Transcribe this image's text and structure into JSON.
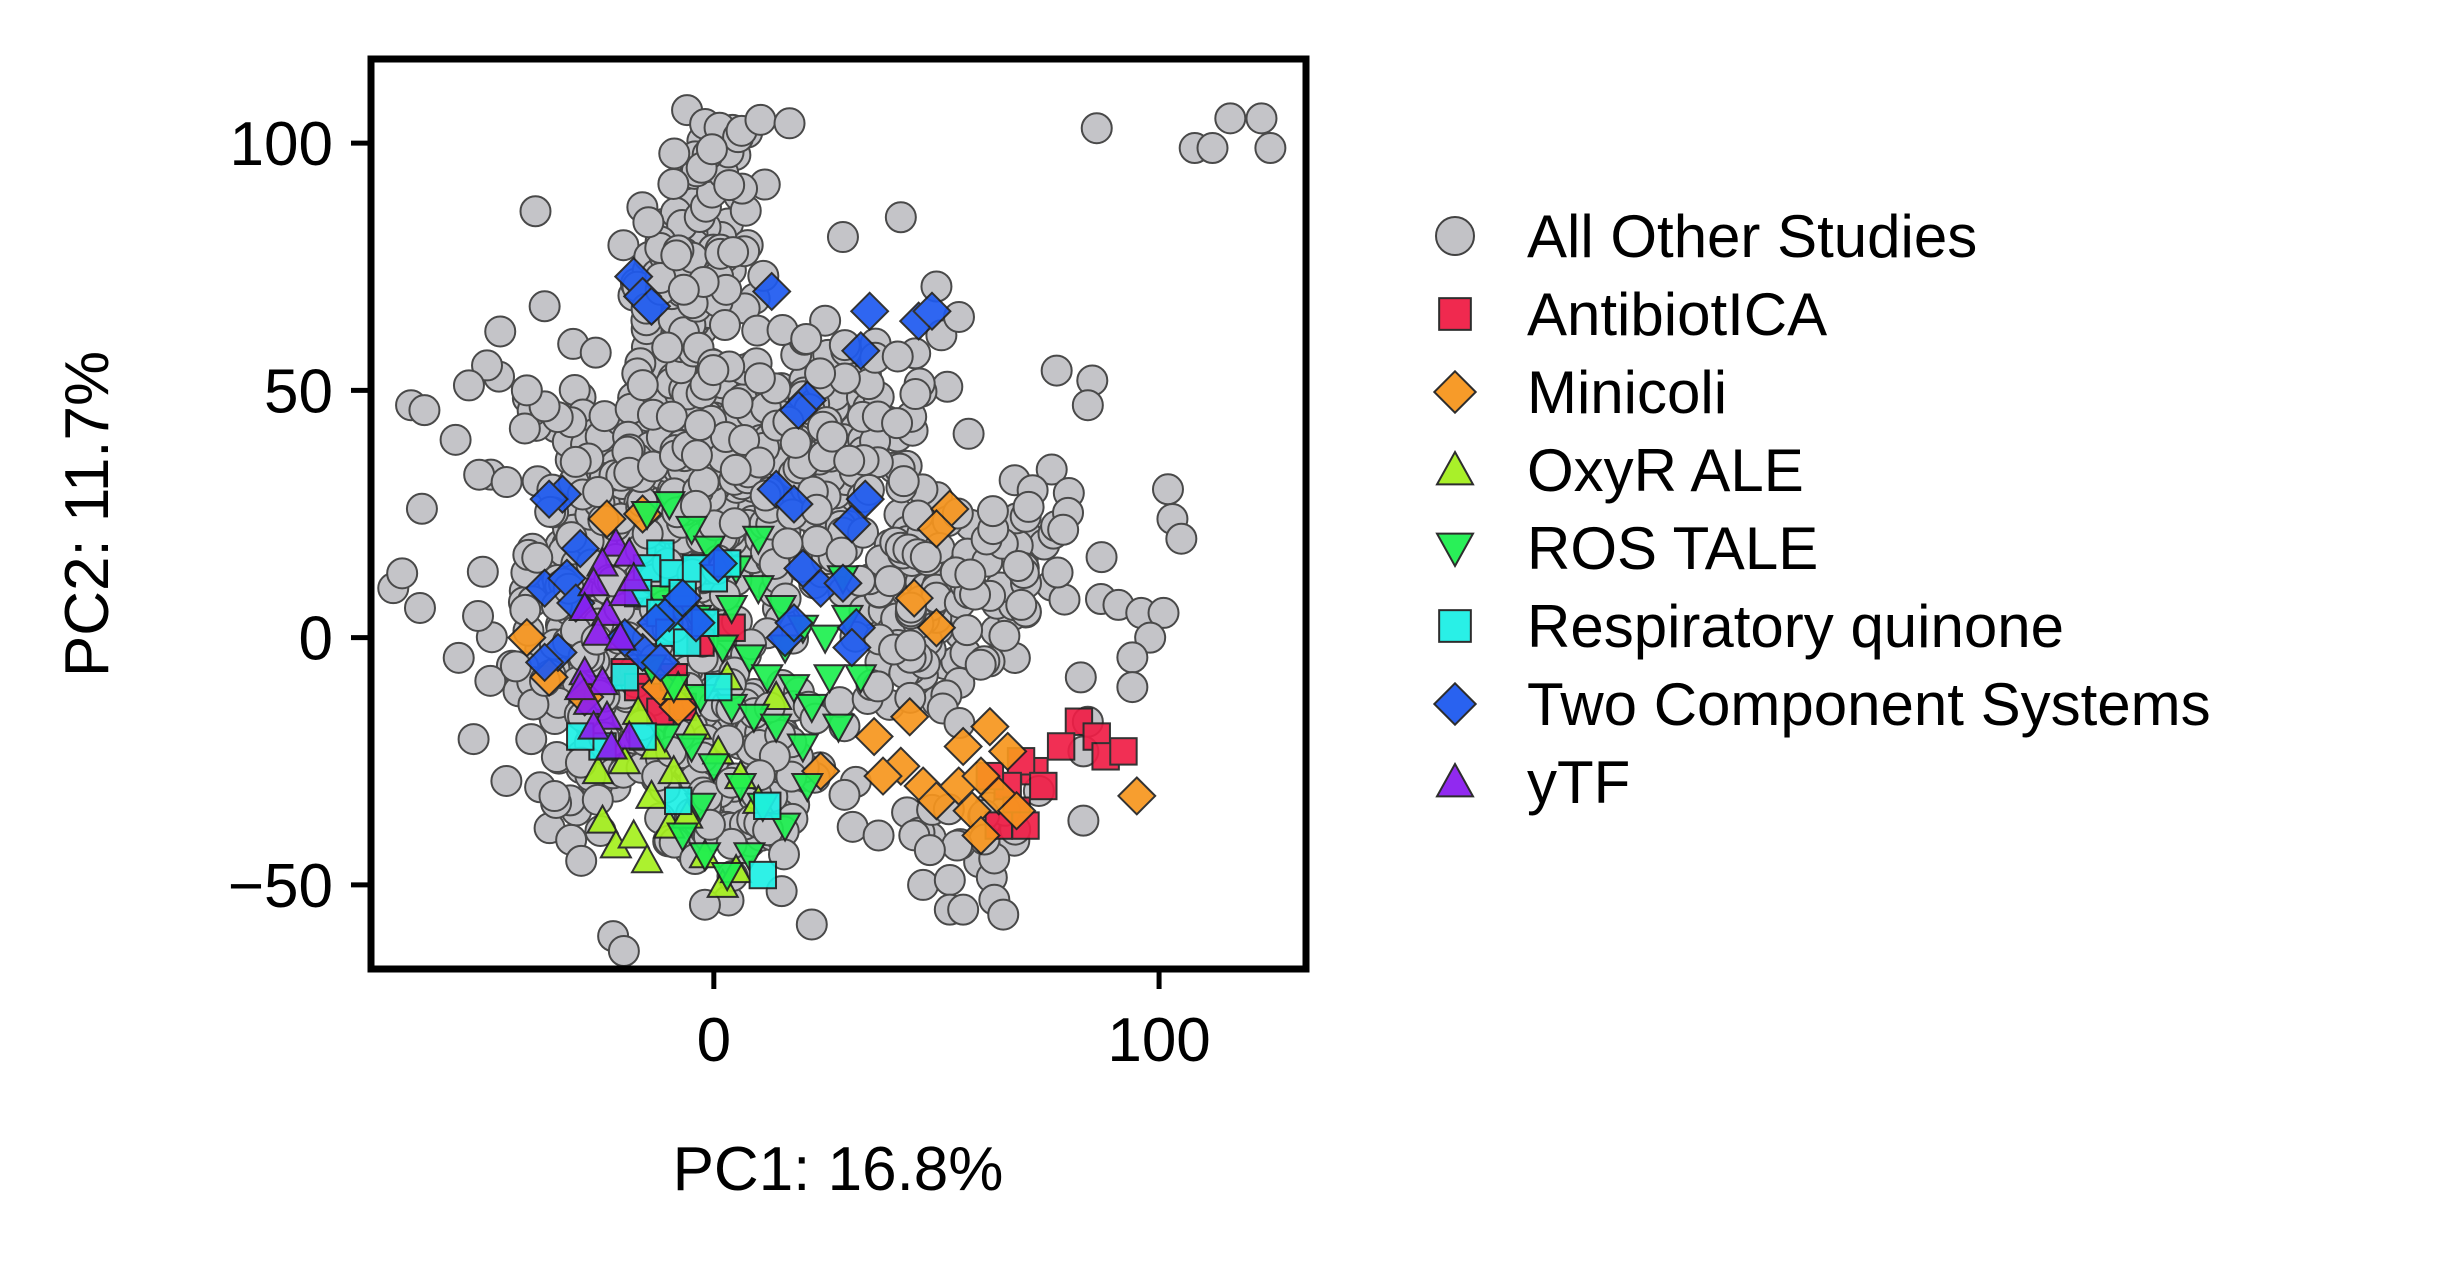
{
  "chart_data": {
    "type": "scatter",
    "title": "",
    "xlabel": "PC1: 16.8%",
    "ylabel": "PC2: 11.7%",
    "xlim": [
      -77,
      133
    ],
    "ylim": [
      -67,
      117
    ],
    "xticks": [
      0,
      100
    ],
    "xtick_labels": [
      "0",
      "100"
    ],
    "yticks": [
      -50,
      0,
      50,
      100
    ],
    "ytick_labels": [
      "−50",
      "0",
      "50",
      "100"
    ],
    "grid": false,
    "legend_position": "right, outside plot",
    "series": [
      {
        "name": "All Other Studies",
        "marker": "circle",
        "color": "#b8b8bd",
        "clusters": [
          {
            "cx": -18,
            "cy": 5,
            "rx": 26,
            "ry": 42,
            "n": 520
          },
          {
            "cx": 0,
            "cy": 35,
            "rx": 22,
            "ry": 18,
            "n": 210
          },
          {
            "cx": -6,
            "cy": 72,
            "rx": 14,
            "ry": 14,
            "n": 90
          },
          {
            "cx": -2,
            "cy": 96,
            "rx": 9,
            "ry": 8,
            "n": 35
          },
          {
            "cx": 22,
            "cy": 40,
            "rx": 24,
            "ry": 22,
            "n": 180
          },
          {
            "cx": 10,
            "cy": -25,
            "rx": 14,
            "ry": 18,
            "n": 110
          },
          {
            "cx": 45,
            "cy": 8,
            "rx": 16,
            "ry": 24,
            "n": 110
          },
          {
            "cx": 68,
            "cy": 14,
            "rx": 14,
            "ry": 20,
            "n": 55
          },
          {
            "cx": 58,
            "cy": -40,
            "rx": 10,
            "ry": 10,
            "n": 20
          }
        ],
        "points": [
          [
            17,
            104
          ],
          [
            86,
            103
          ],
          [
            108,
            99
          ],
          [
            112,
            99
          ],
          [
            116,
            105
          ],
          [
            123,
            105
          ],
          [
            125,
            99
          ],
          [
            -68,
            47
          ],
          [
            -65,
            46
          ],
          [
            -58,
            40
          ],
          [
            -55,
            51
          ],
          [
            -42,
            50
          ],
          [
            -72,
            10
          ],
          [
            -70,
            13
          ],
          [
            -66,
            6
          ],
          [
            -38,
            67
          ],
          [
            50,
            71
          ],
          [
            42,
            85
          ],
          [
            29,
            81
          ],
          [
            77,
            54
          ],
          [
            85,
            52
          ],
          [
            84,
            47
          ],
          [
            102,
            30
          ],
          [
            103,
            24
          ],
          [
            105,
            20
          ],
          [
            96,
            5
          ],
          [
            101,
            5
          ],
          [
            98,
            0
          ],
          [
            94,
            -4
          ],
          [
            94,
            -10
          ],
          [
            84,
            -17
          ],
          [
            83,
            -23
          ],
          [
            73,
            -31
          ],
          [
            83,
            -37
          ],
          [
            47,
            -50
          ],
          [
            53,
            -49
          ],
          [
            53,
            -55
          ],
          [
            56,
            -55
          ],
          [
            63,
            -53
          ],
          [
            65,
            -56
          ],
          [
            37,
            -40
          ],
          [
            22,
            -58
          ],
          [
            -2,
            -54
          ]
        ]
      },
      {
        "name": "AntibiotICA",
        "marker": "square",
        "color": "#f01e46",
        "points": [
          [
            82,
            -17
          ],
          [
            86,
            -20
          ],
          [
            88,
            -24
          ],
          [
            92,
            -23
          ],
          [
            78,
            -22
          ],
          [
            72,
            -27
          ],
          [
            69,
            -25
          ],
          [
            74,
            -30
          ],
          [
            66,
            -30
          ],
          [
            62,
            -28
          ],
          [
            68,
            -35
          ],
          [
            64,
            -38
          ],
          [
            70,
            -38
          ],
          [
            -20,
            -7
          ],
          [
            -17,
            -10
          ],
          [
            -14,
            -12
          ],
          [
            -12,
            -15
          ],
          [
            -9,
            -8
          ],
          [
            -7,
            -14
          ],
          [
            4,
            2
          ],
          [
            -3,
            -1
          ]
        ]
      },
      {
        "name": "Minicoli",
        "marker": "diamond",
        "color": "#f7961e",
        "points": [
          [
            53,
            26
          ],
          [
            50,
            22
          ],
          [
            45,
            8
          ],
          [
            50,
            2
          ],
          [
            44,
            -16
          ],
          [
            36,
            -20
          ],
          [
            42,
            -26
          ],
          [
            47,
            -30
          ],
          [
            50,
            -33
          ],
          [
            55,
            -30
          ],
          [
            58,
            -35
          ],
          [
            60,
            -28
          ],
          [
            56,
            -22
          ],
          [
            62,
            -18
          ],
          [
            66,
            -23
          ],
          [
            64,
            -32
          ],
          [
            68,
            -35
          ],
          [
            60,
            -40
          ],
          [
            38,
            -28
          ],
          [
            24,
            -27
          ],
          [
            95,
            -32
          ],
          [
            -42,
            0
          ],
          [
            -24,
            24
          ],
          [
            -16,
            25
          ],
          [
            -12,
            -10
          ],
          [
            -8,
            -14
          ],
          [
            -29,
            -12
          ],
          [
            -37,
            -8
          ]
        ]
      },
      {
        "name": "OxyR ALE",
        "marker": "triangle-up",
        "color": "#a5f01e",
        "points": [
          [
            -25,
            -37
          ],
          [
            -22,
            -42
          ],
          [
            -18,
            -40
          ],
          [
            -15,
            -45
          ],
          [
            -10,
            -38
          ],
          [
            -14,
            -32
          ],
          [
            -6,
            -36
          ],
          [
            -2,
            -44
          ],
          [
            2,
            -50
          ],
          [
            5,
            -47
          ],
          [
            -20,
            -25
          ],
          [
            -13,
            -22
          ],
          [
            -9,
            -27
          ],
          [
            -4,
            -18
          ],
          [
            1,
            -23
          ],
          [
            6,
            -28
          ],
          [
            10,
            -33
          ],
          [
            -26,
            -27
          ],
          [
            -17,
            -15
          ],
          [
            -8,
            -10
          ],
          [
            3,
            -8
          ],
          [
            14,
            -12
          ]
        ]
      },
      {
        "name": "ROS TALE",
        "marker": "triangle-down",
        "color": "#1ef050",
        "points": [
          [
            -15,
            25
          ],
          [
            -10,
            27
          ],
          [
            -5,
            22
          ],
          [
            -1,
            18
          ],
          [
            5,
            14
          ],
          [
            10,
            10
          ],
          [
            15,
            6
          ],
          [
            20,
            2
          ],
          [
            25,
            0
          ],
          [
            -12,
            8
          ],
          [
            -8,
            6
          ],
          [
            -4,
            4
          ],
          [
            2,
            -2
          ],
          [
            8,
            -4
          ],
          [
            12,
            -8
          ],
          [
            18,
            -10
          ],
          [
            22,
            -14
          ],
          [
            28,
            -18
          ],
          [
            -14,
            -6
          ],
          [
            -9,
            -10
          ],
          [
            -3,
            -12
          ],
          [
            4,
            -14
          ],
          [
            9,
            -16
          ],
          [
            14,
            -18
          ],
          [
            20,
            -22
          ],
          [
            26,
            -8
          ],
          [
            -11,
            -20
          ],
          [
            -5,
            -22
          ],
          [
            0,
            -26
          ],
          [
            6,
            -30
          ],
          [
            11,
            -34
          ],
          [
            16,
            -38
          ],
          [
            21,
            -30
          ],
          [
            -7,
            -40
          ],
          [
            -2,
            -44
          ],
          [
            3,
            -48
          ],
          [
            8,
            -44
          ],
          [
            -3,
            -34
          ],
          [
            29,
            12
          ],
          [
            33,
            -8
          ],
          [
            10,
            20
          ],
          [
            4,
            6
          ],
          [
            16,
            -2
          ],
          [
            30,
            4
          ]
        ]
      },
      {
        "name": "Respiratory quinone",
        "marker": "square",
        "color": "#1ef0e6",
        "points": [
          [
            -12,
            17
          ],
          [
            -15,
            14
          ],
          [
            -17,
            9
          ],
          [
            -12,
            5
          ],
          [
            -9,
            13
          ],
          [
            -7,
            9
          ],
          [
            -4,
            14
          ],
          [
            0,
            12
          ],
          [
            3,
            15
          ],
          [
            -10,
            1
          ],
          [
            -6,
            -1
          ],
          [
            -2,
            3
          ],
          [
            -20,
            -8
          ],
          [
            -16,
            -20
          ],
          [
            -25,
            -22
          ],
          [
            -30,
            -20
          ],
          [
            -8,
            -33
          ],
          [
            12,
            -34
          ],
          [
            11,
            -48
          ],
          [
            1,
            -10
          ]
        ]
      },
      {
        "name": "Two Component Systems",
        "marker": "diamond",
        "color": "#1e5af0",
        "points": [
          [
            -18,
            73
          ],
          [
            -16,
            69
          ],
          [
            -14,
            67
          ],
          [
            13,
            70
          ],
          [
            35,
            66
          ],
          [
            46,
            64
          ],
          [
            49,
            66
          ],
          [
            33,
            58
          ],
          [
            21,
            48
          ],
          [
            19,
            46
          ],
          [
            14,
            30
          ],
          [
            18,
            27
          ],
          [
            34,
            28
          ],
          [
            31,
            23
          ],
          [
            -34,
            29
          ],
          [
            -37,
            28
          ],
          [
            -38,
            10
          ],
          [
            -33,
            12
          ],
          [
            -30,
            18
          ],
          [
            1,
            15
          ],
          [
            20,
            14
          ],
          [
            24,
            10
          ],
          [
            29,
            11
          ],
          [
            -10,
            5
          ],
          [
            -7,
            8
          ],
          [
            -4,
            3
          ],
          [
            -13,
            3
          ],
          [
            -16,
            -3
          ],
          [
            -12,
            -5
          ],
          [
            -35,
            -3
          ],
          [
            -38,
            -5
          ],
          [
            -31,
            7
          ],
          [
            -20,
            0
          ],
          [
            16,
            0
          ],
          [
            18,
            3
          ],
          [
            32,
            2
          ],
          [
            31,
            -2
          ]
        ]
      },
      {
        "name": "yTF",
        "marker": "triangle-up",
        "color": "#8c1ef0",
        "points": [
          [
            -22,
            19
          ],
          [
            -19,
            17
          ],
          [
            -25,
            15
          ],
          [
            -27,
            11
          ],
          [
            -29,
            6
          ],
          [
            -24,
            5
          ],
          [
            -26,
            1
          ],
          [
            -21,
            0
          ],
          [
            -29,
            -7
          ],
          [
            -25,
            -9
          ],
          [
            -28,
            -13
          ],
          [
            -24,
            -16
          ],
          [
            -19,
            -20
          ],
          [
            -27,
            -18
          ],
          [
            -23,
            -22
          ],
          [
            -30,
            -10
          ],
          [
            -20,
            9
          ],
          [
            -18,
            12
          ]
        ]
      }
    ]
  }
}
